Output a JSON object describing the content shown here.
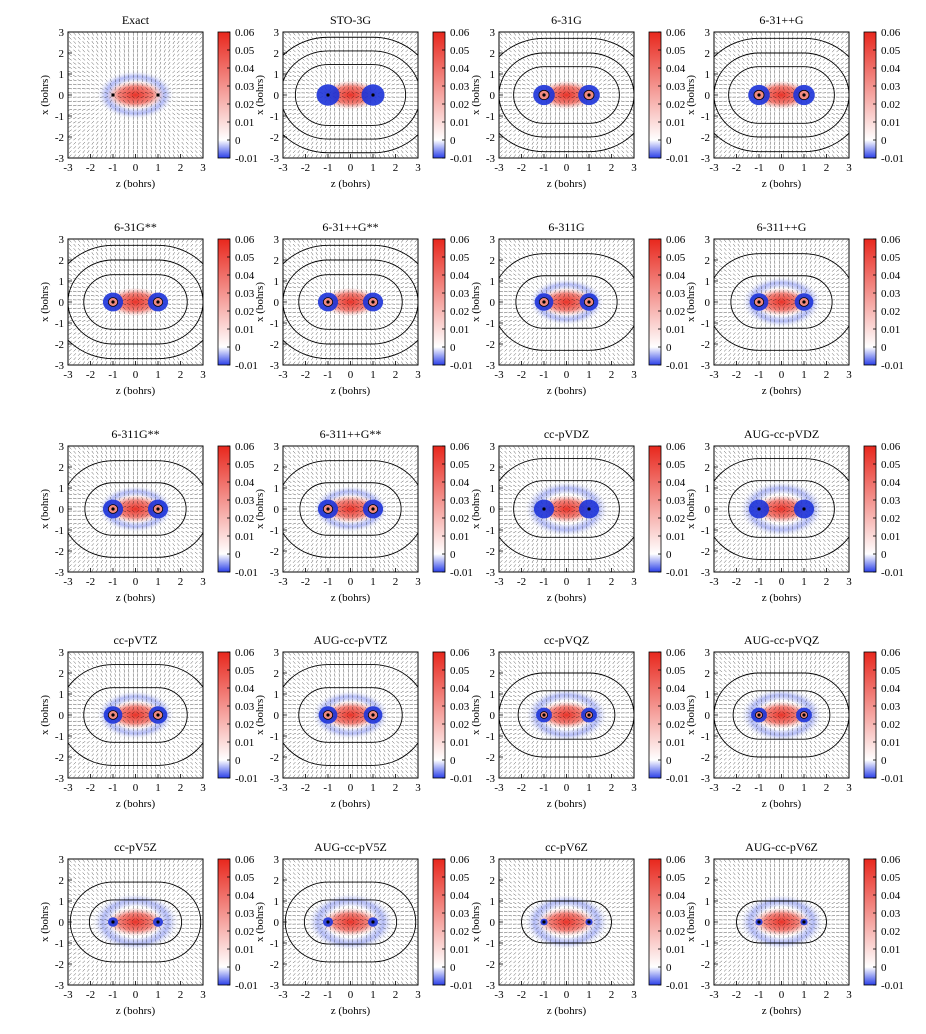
{
  "figure_name": "Basis set comparison heat maps",
  "chart_data": {
    "type": "heatmap",
    "grid": {
      "rows": 5,
      "cols": 4
    },
    "xlabel": "z (bohrs)",
    "ylabel": "x (bohrs)",
    "xlim": [
      -3,
      3
    ],
    "ylim": [
      -3,
      3
    ],
    "xticks": [
      "-3",
      "-2",
      "-1",
      "0",
      "1",
      "2",
      "3"
    ],
    "yticks": [
      "3",
      "2",
      "1",
      "0",
      "-1",
      "-2",
      "-3"
    ],
    "colorbar": {
      "range": [
        -0.01,
        0.06
      ],
      "ticks": [
        "0.06",
        "0.05",
        "0.04",
        "0.03",
        "0.02",
        "0.01",
        "0",
        "-0.01"
      ],
      "colors": {
        "low": "#2a3fe8",
        "mid": "#ffffff",
        "high": "#e8271d"
      }
    },
    "nuclei_positions_z": [
      -1,
      1
    ],
    "panels": [
      {
        "title": "Exact",
        "hole_radius": 0.0,
        "ring_radius": 0.0,
        "blue_halo": 0.6,
        "red_extent": 0.95,
        "contours": []
      },
      {
        "title": "STO-3G",
        "hole_radius": 0.32,
        "ring_radius": 0.0,
        "blue_halo": 0.0,
        "red_extent": 1.0,
        "contours": [
          1.45,
          2.1,
          2.75
        ]
      },
      {
        "title": "6-31G",
        "hole_radius": 0.3,
        "ring_radius": 0.14,
        "blue_halo": 0.0,
        "red_extent": 0.95,
        "contours": [
          1.35,
          2.0,
          2.7
        ]
      },
      {
        "title": "6-31++G",
        "hole_radius": 0.3,
        "ring_radius": 0.14,
        "blue_halo": 0.0,
        "red_extent": 0.95,
        "contours": [
          1.35,
          2.0,
          2.7
        ]
      },
      {
        "title": "6-31G**",
        "hole_radius": 0.28,
        "ring_radius": 0.13,
        "blue_halo": 0.0,
        "red_extent": 0.95,
        "contours": [
          1.3,
          2.0,
          2.7
        ]
      },
      {
        "title": "6-31++G**",
        "hole_radius": 0.28,
        "ring_radius": 0.13,
        "blue_halo": 0.0,
        "red_extent": 0.95,
        "contours": [
          1.3,
          2.0,
          2.7
        ]
      },
      {
        "title": "6-311G",
        "hole_radius": 0.26,
        "ring_radius": 0.13,
        "blue_halo": 0.55,
        "red_extent": 0.9,
        "contours": [
          1.25,
          2.3
        ]
      },
      {
        "title": "6-311++G",
        "hole_radius": 0.26,
        "ring_radius": 0.13,
        "blue_halo": 0.65,
        "red_extent": 0.9,
        "contours": [
          1.25,
          2.3
        ]
      },
      {
        "title": "6-311G**",
        "hole_radius": 0.28,
        "ring_radius": 0.13,
        "blue_halo": 0.55,
        "red_extent": 0.9,
        "contours": [
          1.25,
          2.3
        ]
      },
      {
        "title": "6-311++G**",
        "hole_radius": 0.28,
        "ring_radius": 0.13,
        "blue_halo": 0.55,
        "red_extent": 0.9,
        "contours": [
          1.25,
          2.3
        ]
      },
      {
        "title": "cc-pVDZ",
        "hole_radius": 0.28,
        "ring_radius": 0.0,
        "blue_halo": 0.75,
        "red_extent": 0.9,
        "contours": [
          1.35,
          2.4
        ]
      },
      {
        "title": "AUG-cc-pVDZ",
        "hole_radius": 0.28,
        "ring_radius": 0.0,
        "blue_halo": 0.75,
        "red_extent": 0.9,
        "contours": [
          1.35,
          2.4
        ]
      },
      {
        "title": "cc-pVTZ",
        "hole_radius": 0.26,
        "ring_radius": 0.13,
        "blue_halo": 0.6,
        "red_extent": 0.9,
        "contours": [
          1.3,
          2.4
        ]
      },
      {
        "title": "AUG-cc-pVTZ",
        "hole_radius": 0.26,
        "ring_radius": 0.13,
        "blue_halo": 0.6,
        "red_extent": 0.9,
        "contours": [
          1.3,
          2.4
        ]
      },
      {
        "title": "cc-pVQZ",
        "hole_radius": 0.22,
        "ring_radius": 0.1,
        "blue_halo": 0.7,
        "red_extent": 0.85,
        "contours": [
          1.15,
          2.0
        ]
      },
      {
        "title": "AUG-cc-pVQZ",
        "hole_radius": 0.22,
        "ring_radius": 0.1,
        "blue_halo": 0.7,
        "red_extent": 0.85,
        "contours": [
          1.15,
          2.0
        ]
      },
      {
        "title": "cc-pV5Z",
        "hole_radius": 0.14,
        "ring_radius": 0.0,
        "blue_halo": 0.8,
        "red_extent": 0.95,
        "contours": [
          1.05,
          1.9
        ]
      },
      {
        "title": "AUG-cc-pV5Z",
        "hole_radius": 0.14,
        "ring_radius": 0.0,
        "blue_halo": 0.8,
        "red_extent": 0.95,
        "contours": [
          1.05,
          1.9
        ]
      },
      {
        "title": "cc-pV6Z",
        "hole_radius": 0.1,
        "ring_radius": 0.0,
        "blue_halo": 0.75,
        "red_extent": 0.95,
        "contours": [
          1.0
        ]
      },
      {
        "title": "AUG-cc-pV6Z",
        "hole_radius": 0.1,
        "ring_radius": 0.0,
        "blue_halo": 0.75,
        "red_extent": 0.95,
        "contours": [
          1.0
        ]
      }
    ]
  }
}
